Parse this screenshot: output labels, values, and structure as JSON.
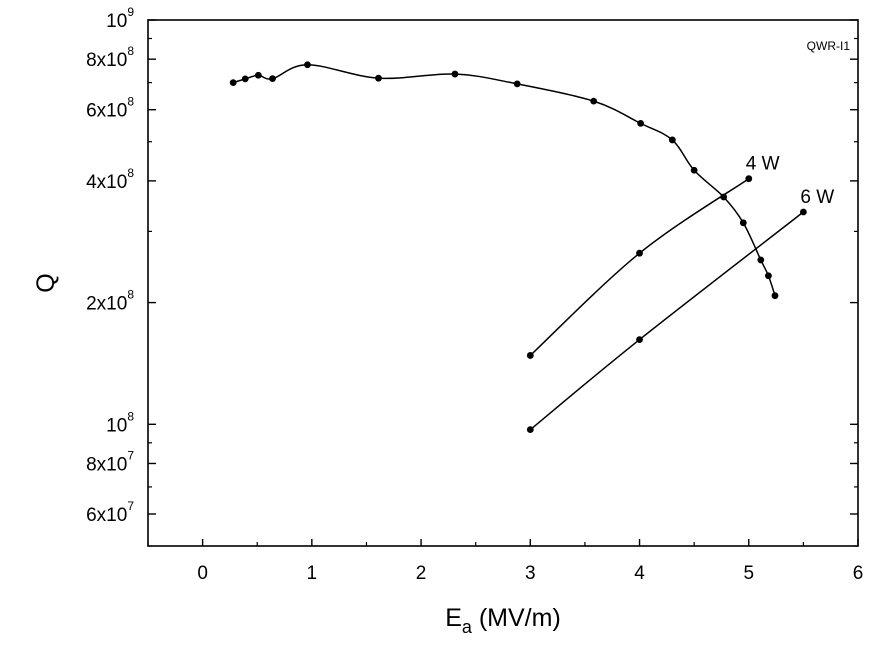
{
  "chart_data": {
    "type": "scatter",
    "title": "",
    "annotation": "QWR-I1",
    "xlabel": {
      "main": "E",
      "sub": "a",
      "rest": " (MV/m)"
    },
    "ylabel": "Q",
    "xlim": [
      -0.5,
      6
    ],
    "ylim": [
      50000000,
      1000000000
    ],
    "y_scale": "log",
    "grid": false,
    "legend": "none",
    "x_ticks": [
      {
        "value": 0,
        "label": "0"
      },
      {
        "value": 1,
        "label": "1"
      },
      {
        "value": 2,
        "label": "2"
      },
      {
        "value": 3,
        "label": "3"
      },
      {
        "value": 4,
        "label": "4"
      },
      {
        "value": 5,
        "label": "5"
      },
      {
        "value": 6,
        "label": "6"
      }
    ],
    "y_ticks": [
      {
        "value": 60000000,
        "base": "6x10",
        "exp": "7"
      },
      {
        "value": 80000000,
        "base": "8x10",
        "exp": "7"
      },
      {
        "value": 100000000,
        "base": "10",
        "exp": "8"
      },
      {
        "value": 200000000,
        "base": "2x10",
        "exp": "8"
      },
      {
        "value": 400000000,
        "base": "4x10",
        "exp": "8"
      },
      {
        "value": 600000000,
        "base": "6x10",
        "exp": "8"
      },
      {
        "value": 800000000,
        "base": "8x10",
        "exp": "8"
      },
      {
        "value": 1000000000,
        "base": "10",
        "exp": "9"
      }
    ],
    "series": [
      {
        "x": [
          0.28,
          0.39,
          0.51,
          0.64,
          0.96,
          1.61,
          2.31,
          2.88,
          3.58,
          4.01,
          4.3,
          4.5,
          4.77,
          4.95,
          5.11,
          5.18,
          5.24
        ],
        "y": [
          700000000,
          715000000,
          730000000,
          716000000,
          775000000,
          718000000,
          735000000,
          695000000,
          630000000,
          555000000,
          505000000,
          425000000,
          365000000,
          315000000,
          255000000,
          233000000,
          208000000
        ]
      },
      {
        "name": "4 W",
        "x": [
          3.0,
          4.0,
          5.0
        ],
        "y": [
          148000000,
          265000000,
          405000000
        ]
      },
      {
        "name": "6 W",
        "x": [
          3.0,
          4.0,
          5.5
        ],
        "y": [
          97000000,
          162000000,
          335000000
        ]
      }
    ]
  }
}
